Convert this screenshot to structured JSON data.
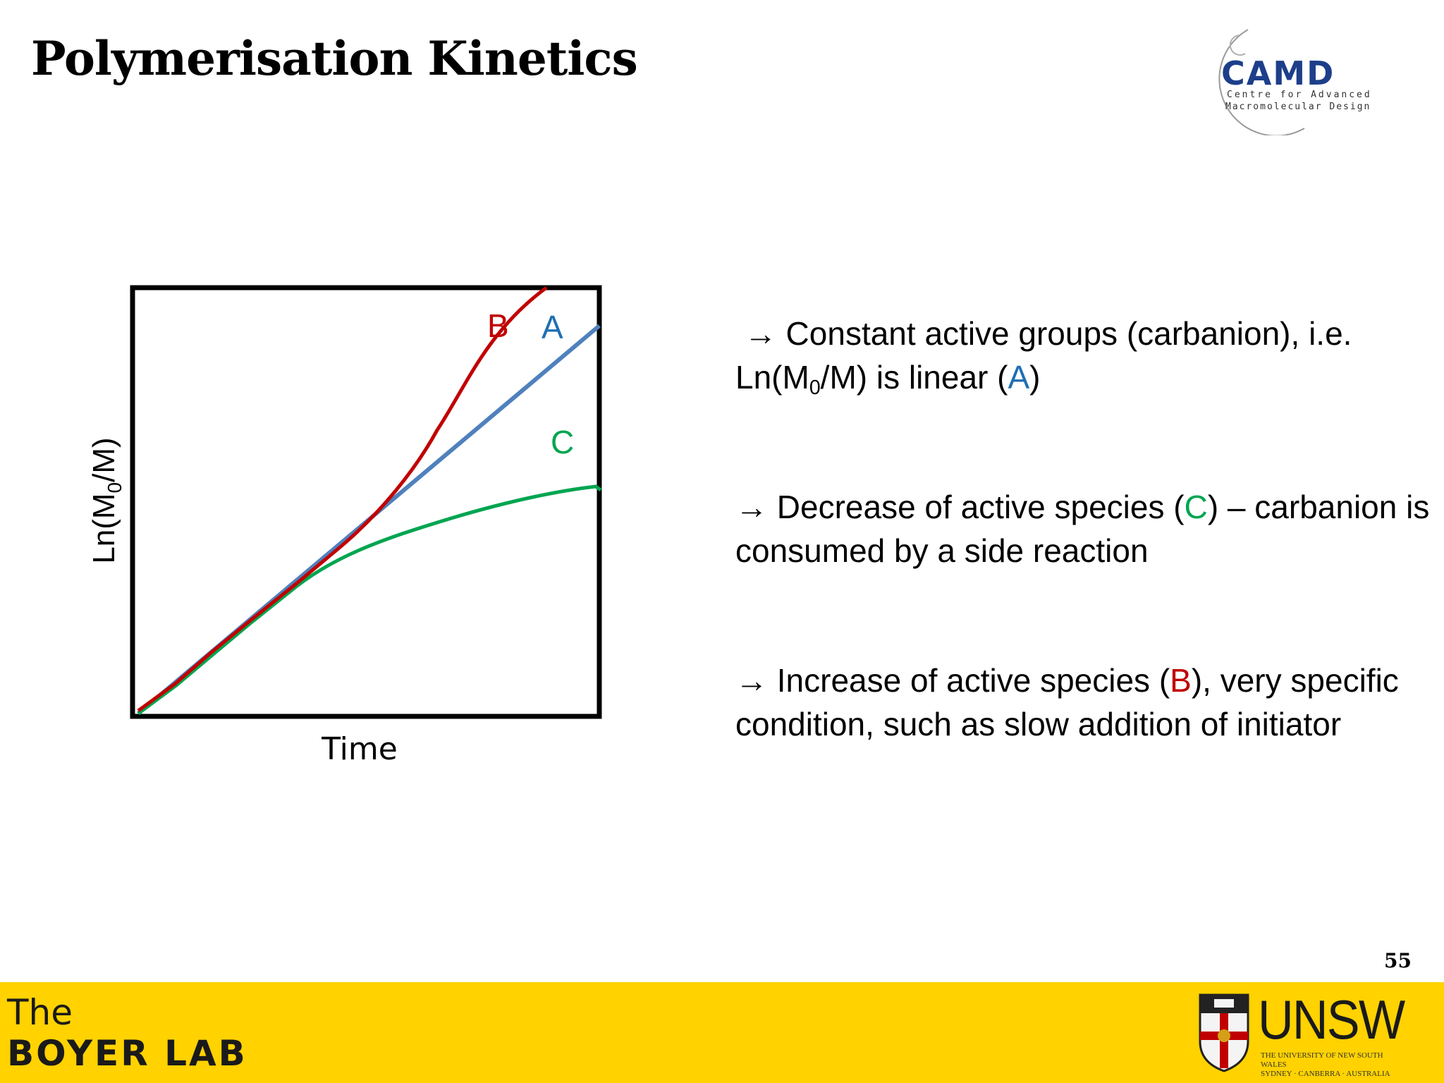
{
  "slide": {
    "title": "Polymerisation Kinetics",
    "page_number": "55"
  },
  "camd_logo": {
    "name": "CAMD",
    "line1": "Centre for Advanced",
    "line2": "Macromolecular Design",
    "color": "#1d3f8a"
  },
  "diagram": {
    "x_label": "Time",
    "y_label_prefix": "Ln(M",
    "y_label_sub": "0",
    "y_label_suffix": "/M)",
    "curves": [
      {
        "label": "A",
        "color": "#4f81bd"
      },
      {
        "label": "B",
        "color": "#c00000"
      },
      {
        "label": "C",
        "color": "#00a550"
      }
    ]
  },
  "bullets": [
    {
      "parts": [
        {
          "text": " → Constant active groups (carbanion), i.e. Ln(M"
        },
        {
          "text": "0",
          "sub": true
        },
        {
          "text": "/M) is linear ("
        },
        {
          "text": "A",
          "color": "#1f6fb3"
        },
        {
          "text": ")"
        }
      ]
    },
    {
      "parts": [
        {
          "text": "→ Decrease of active species ("
        },
        {
          "text": "C",
          "color": "#00a550"
        },
        {
          "text": ") – carbanion is consumed by a side reaction"
        }
      ]
    },
    {
      "parts": [
        {
          "text": "→ Increase of active species ("
        },
        {
          "text": "B",
          "color": "#c00000"
        },
        {
          "text": "), very specific condition, such as slow addition of initiator"
        }
      ]
    }
  ],
  "footer": {
    "lab_line1": "The",
    "lab_line2": "BOYER LAB",
    "university": "UNSW",
    "university_line1": "THE UNIVERSITY OF NEW SOUTH WALES",
    "university_line2": "SYDNEY · CANBERRA · AUSTRALIA",
    "background": "#ffd200"
  }
}
